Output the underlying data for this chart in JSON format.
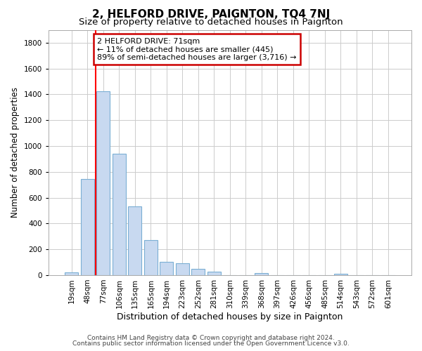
{
  "title": "2, HELFORD DRIVE, PAIGNTON, TQ4 7NJ",
  "subtitle": "Size of property relative to detached houses in Paignton",
  "xlabel": "Distribution of detached houses by size in Paignton",
  "ylabel": "Number of detached properties",
  "categories": [
    "19sqm",
    "48sqm",
    "77sqm",
    "106sqm",
    "135sqm",
    "165sqm",
    "194sqm",
    "223sqm",
    "252sqm",
    "281sqm",
    "310sqm",
    "339sqm",
    "368sqm",
    "397sqm",
    "426sqm",
    "456sqm",
    "485sqm",
    "514sqm",
    "543sqm",
    "572sqm",
    "601sqm"
  ],
  "values": [
    22,
    745,
    1425,
    940,
    530,
    270,
    105,
    90,
    48,
    28,
    0,
    0,
    15,
    0,
    0,
    0,
    0,
    12,
    0,
    0,
    0
  ],
  "bar_color": "#c8d9f0",
  "bar_edge_color": "#7bafd4",
  "annotation_line1": "2 HELFORD DRIVE: 71sqm",
  "annotation_line2": "← 11% of detached houses are smaller (445)",
  "annotation_line3": "89% of semi-detached houses are larger (3,716) →",
  "annotation_box_color": "#ffffff",
  "annotation_box_edge": "#cc0000",
  "red_line_bar_index": 2,
  "ylim": [
    0,
    1900
  ],
  "yticks": [
    0,
    200,
    400,
    600,
    800,
    1000,
    1200,
    1400,
    1600,
    1800
  ],
  "grid_color": "#cccccc",
  "background_color": "#ffffff",
  "plot_bg_color": "#ffffff",
  "footer_line1": "Contains HM Land Registry data © Crown copyright and database right 2024.",
  "footer_line2": "Contains public sector information licensed under the Open Government Licence v3.0.",
  "title_fontsize": 11,
  "subtitle_fontsize": 9.5,
  "tick_fontsize": 7.5,
  "ylabel_fontsize": 8.5,
  "xlabel_fontsize": 9,
  "footer_fontsize": 6.5
}
